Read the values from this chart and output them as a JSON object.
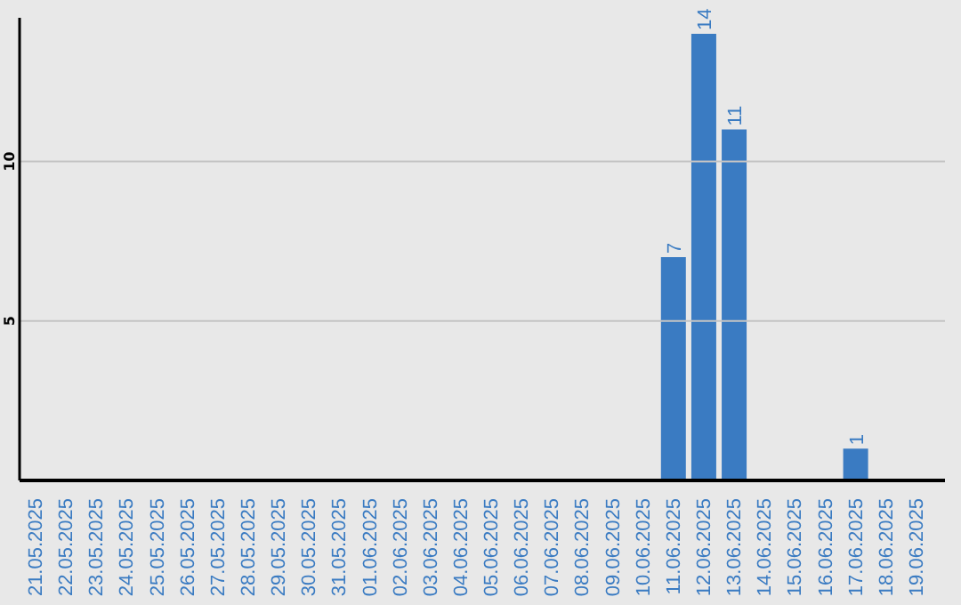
{
  "chart_data": {
    "type": "bar",
    "categories": [
      "21.05.2025",
      "22.05.2025",
      "23.05.2025",
      "24.05.2025",
      "25.05.2025",
      "26.05.2025",
      "27.05.2025",
      "28.05.2025",
      "29.05.2025",
      "30.05.2025",
      "31.05.2025",
      "01.06.2025",
      "02.06.2025",
      "03.06.2025",
      "04.06.2025",
      "05.06.2025",
      "06.06.2025",
      "07.06.2025",
      "08.06.2025",
      "09.06.2025",
      "10.06.2025",
      "11.06.2025",
      "12.06.2025",
      "13.06.2025",
      "14.06.2025",
      "15.06.2025",
      "16.06.2025",
      "17.06.2025",
      "18.06.2025",
      "19.06.2025"
    ],
    "values": [
      0,
      0,
      0,
      0,
      0,
      0,
      0,
      0,
      0,
      0,
      0,
      0,
      0,
      0,
      0,
      0,
      0,
      0,
      0,
      0,
      0,
      7,
      14,
      11,
      0,
      0,
      0,
      1,
      0,
      0
    ],
    "value_labels": [
      null,
      null,
      null,
      null,
      null,
      null,
      null,
      null,
      null,
      null,
      null,
      null,
      null,
      null,
      null,
      null,
      null,
      null,
      null,
      null,
      null,
      "7",
      "14",
      "11",
      null,
      null,
      null,
      "1",
      null,
      null
    ],
    "color": "#3a7bc2",
    "ylim": [
      0,
      14.5
    ],
    "yticks": [
      5,
      10
    ],
    "grid": "y"
  }
}
